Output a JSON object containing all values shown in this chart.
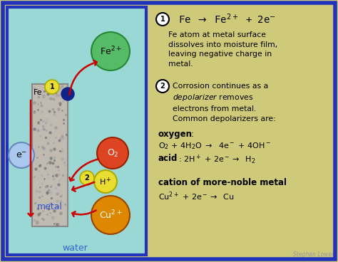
{
  "bg_color": "#cfc97a",
  "outer_border_color": "#2233bb",
  "left_panel_bg": "#9ad8d5",
  "metal_color": "#c0bab0",
  "metal_border": "#888888",
  "water_label": "water",
  "metal_label": "metal",
  "fe_label": "Fe",
  "fe2plus_color": "#55bb66",
  "fe2plus_border": "#228833",
  "fe2plus_label": "Fe$^{2+}$",
  "eminus_color": "#aac8ee",
  "eminus_border": "#6688bb",
  "eminus_label": "e$^{-}$",
  "o2_color": "#dd4422",
  "o2_border": "#992200",
  "o2_label": "O$_2$",
  "hplus_color": "#e8dd30",
  "hplus_border": "#aaaa00",
  "hplus_label": "H$^+$",
  "cu2plus_color": "#dd8800",
  "cu2plus_border": "#994400",
  "cu2plus_label": "Cu$^{2+}$",
  "num_circle_color": "#e8dd30",
  "num_circle_border": "#aaaa00",
  "arrow_color": "#cc0000",
  "fe_dot_color": "#112288",
  "text_color": "#111111",
  "water_color": "#3366cc",
  "metal_text_color": "#3355cc"
}
